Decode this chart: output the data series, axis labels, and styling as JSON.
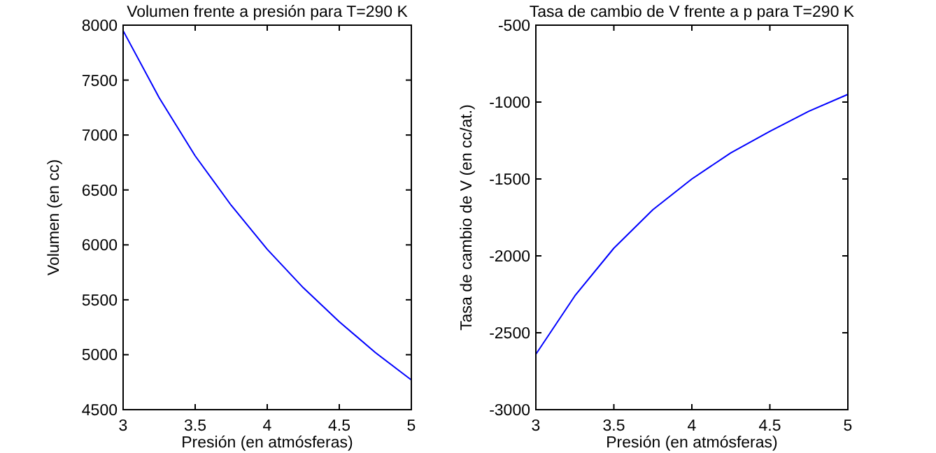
{
  "chart_data": [
    {
      "type": "line",
      "title": "Volumen frente a presión para T=290 K",
      "xlabel": "Presión (en atmósferas)",
      "ylabel": "Volumen (en cc)",
      "x": [
        3,
        3.25,
        3.5,
        3.75,
        4,
        4.25,
        4.5,
        4.75,
        5
      ],
      "xlim": [
        3,
        5
      ],
      "xticks": [
        3,
        3.5,
        4,
        4.5,
        5
      ],
      "ylim": [
        4500,
        8000
      ],
      "yticks": [
        4500,
        5000,
        5500,
        6000,
        6500,
        7000,
        7500,
        8000
      ],
      "series": [
        {
          "color": "#0000ff",
          "values": [
            7950,
            7340,
            6810,
            6360,
            5960,
            5610,
            5300,
            5020,
            4770
          ]
        }
      ]
    },
    {
      "type": "line",
      "title": "Tasa de cambio de V frente a p para T=290 K",
      "xlabel": "Presión (en atmósferas)",
      "ylabel": "Tasa de cambio de V (en cc/at.)",
      "x": [
        3,
        3.25,
        3.5,
        3.75,
        4,
        4.25,
        4.5,
        4.75,
        5
      ],
      "xlim": [
        3,
        5
      ],
      "xticks": [
        3,
        3.5,
        4,
        4.5,
        5
      ],
      "ylim": [
        -3000,
        -500
      ],
      "yticks": [
        -3000,
        -2500,
        -2000,
        -1500,
        -1000,
        -500
      ],
      "series": [
        {
          "color": "#0000ff",
          "values": [
            -2640,
            -2260,
            -1950,
            -1700,
            -1500,
            -1330,
            -1190,
            -1060,
            -950
          ]
        }
      ]
    }
  ]
}
